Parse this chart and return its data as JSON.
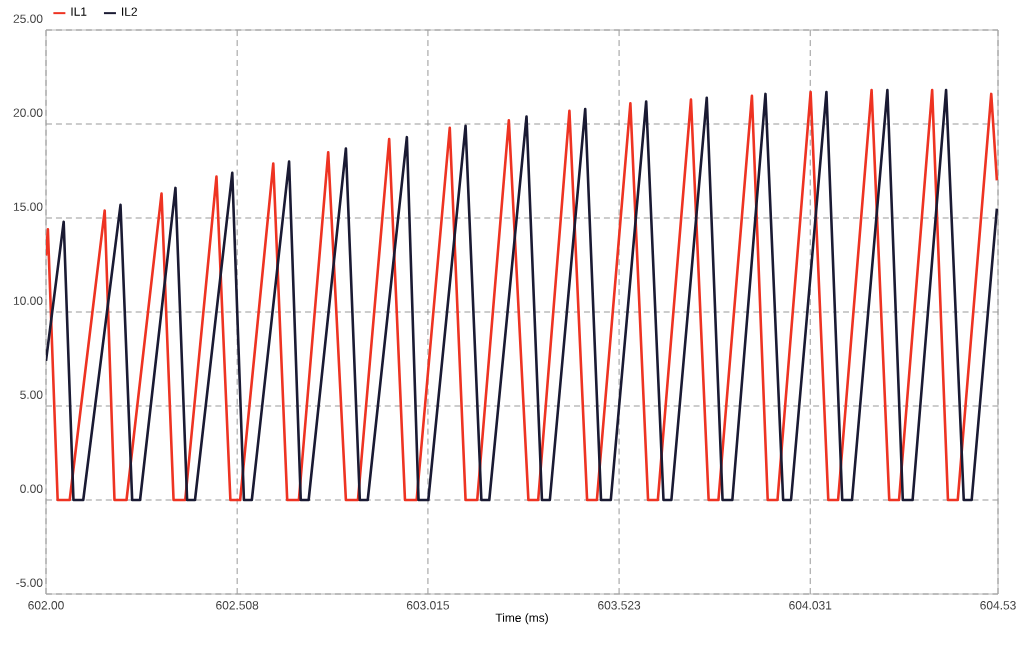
{
  "chart_data": {
    "type": "line",
    "xlabel": "Time (ms)",
    "xlim": [
      602.0,
      604.53
    ],
    "xticks": [
      {
        "value": 602.0,
        "label": "602.00"
      },
      602.508,
      603.015,
      603.523,
      604.031,
      604.53
    ],
    "ylim": [
      -5,
      25
    ],
    "yticks": [
      {
        "value": -5,
        "label": "-5.00"
      },
      {
        "value": 0,
        "label": "0.00"
      },
      {
        "value": 5,
        "label": "5.00"
      },
      {
        "value": 10,
        "label": "10.00"
      },
      {
        "value": 15,
        "label": "15.00"
      },
      {
        "value": 20,
        "label": "20.00"
      },
      {
        "value": 25,
        "label": "25.00"
      }
    ],
    "grid": true,
    "legend": "top left",
    "marker": "none",
    "line_style": "solid",
    "series": [
      {
        "name": "IL1",
        "color": "#ee3322",
        "x": [
          602.0,
          602.005,
          602.031,
          602.063,
          602.156,
          602.182,
          602.214,
          602.307,
          602.339,
          602.37,
          602.453,
          602.49,
          602.516,
          602.604,
          602.641,
          602.672,
          602.75,
          602.797,
          602.829,
          602.912,
          602.954,
          602.985,
          603.073,
          603.115,
          603.146,
          603.23,
          603.282,
          603.308,
          603.391,
          603.438,
          603.464,
          603.553,
          603.6,
          603.626,
          603.714,
          603.761,
          603.787,
          603.876,
          603.918,
          603.944,
          604.032,
          604.079,
          604.105,
          604.194,
          604.241,
          604.267,
          604.355,
          604.397,
          604.423,
          604.512,
          604.527
        ],
        "values": [
          13.0,
          14.4,
          0,
          0,
          15.4,
          0,
          0,
          16.3,
          0,
          0,
          17.2,
          0,
          0,
          17.9,
          0,
          0,
          18.5,
          0,
          0,
          19.2,
          0,
          0,
          19.8,
          0,
          0,
          20.2,
          0,
          0,
          20.7,
          0,
          0,
          21.1,
          0,
          0,
          21.3,
          0,
          0,
          21.5,
          0,
          0,
          21.7,
          0,
          0,
          21.8,
          0,
          0,
          21.8,
          0,
          0,
          21.6,
          17.0
        ]
      },
      {
        "name": "IL2",
        "color": "#1a1a33",
        "x": [
          602.0,
          602.047,
          602.073,
          602.099,
          602.198,
          602.229,
          602.25,
          602.344,
          602.375,
          602.396,
          602.495,
          602.526,
          602.547,
          602.646,
          602.677,
          602.698,
          602.797,
          602.834,
          602.855,
          602.959,
          602.99,
          603.016,
          603.115,
          603.157,
          603.178,
          603.277,
          603.318,
          603.339,
          603.433,
          603.475,
          603.501,
          603.595,
          603.641,
          603.662,
          603.756,
          603.798,
          603.824,
          603.912,
          603.959,
          603.98,
          604.074,
          604.116,
          604.142,
          604.236,
          604.277,
          604.303,
          604.392,
          604.439,
          604.46,
          604.527
        ],
        "values": [
          7.4,
          14.8,
          0,
          0,
          15.7,
          0,
          0,
          16.6,
          0,
          0,
          17.4,
          0,
          0,
          18.0,
          0,
          0,
          18.7,
          0,
          0,
          19.3,
          0,
          0,
          19.9,
          0,
          0,
          20.4,
          0,
          0,
          20.8,
          0,
          0,
          21.2,
          0,
          0,
          21.4,
          0,
          0,
          21.6,
          0,
          0,
          21.7,
          0,
          0,
          21.8,
          0,
          0,
          21.8,
          0,
          0,
          15.5
        ]
      }
    ]
  }
}
